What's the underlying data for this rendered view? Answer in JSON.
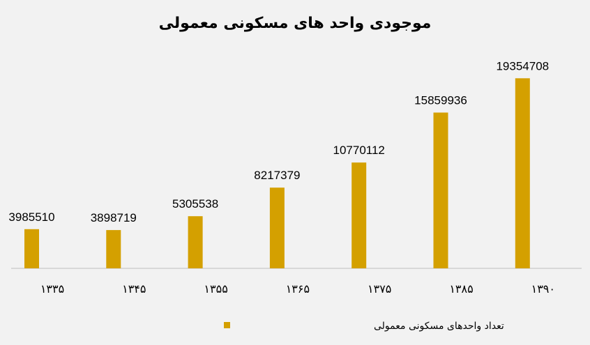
{
  "chart_data": {
    "type": "bar",
    "title": "موجودی واحد های مسکونی معمولی",
    "categories": [
      "۱۳۳۵",
      "۱۳۴۵",
      "۱۳۵۵",
      "۱۳۶۵",
      "۱۳۷۵",
      "۱۳۸۵",
      "۱۳۹۰"
    ],
    "series": [
      {
        "name": "تعداد واحدهای مسکونی معمولی",
        "values": [
          3985510,
          3898719,
          5305538,
          8217379,
          10770112,
          15859936,
          19354708
        ],
        "data_labels": [
          "3985510",
          "3898719",
          "5305538",
          "8217379",
          "10770112",
          "15859936",
          "19354708"
        ]
      }
    ],
    "xlabel": "",
    "ylabel": "",
    "ylim": [
      0,
      22000000
    ],
    "grid": false,
    "legend_position": "bottom",
    "bar_color": "#d4a000",
    "axis_color": "#bfbfbf",
    "background": "#f2f2f2"
  }
}
